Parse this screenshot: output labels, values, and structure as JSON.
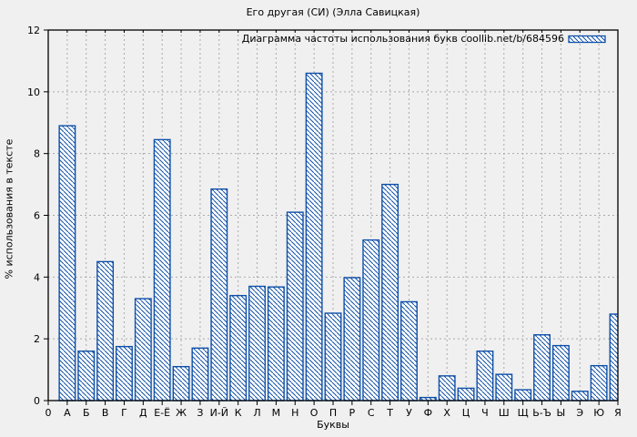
{
  "chart_data": {
    "type": "bar",
    "title": "Его другая (СИ) (Элла Савицкая)",
    "legend": "Диаграмма частоты использования букв coollib.net/b/684596",
    "legend_position": "top-right",
    "xlabel": "Буквы",
    "ylabel": "% использования в тексте",
    "origin_label": "0",
    "categories": [
      "А",
      "Б",
      "В",
      "Г",
      "Д",
      "Е-Ё",
      "Ж",
      "З",
      "И-Й",
      "К",
      "Л",
      "М",
      "Н",
      "О",
      "П",
      "Р",
      "С",
      "Т",
      "У",
      "Ф",
      "Х",
      "Ц",
      "Ч",
      "Ш",
      "Щ",
      "Ь-Ъ",
      "Ы",
      "Э",
      "Ю",
      "Я"
    ],
    "values": [
      8.9,
      1.6,
      4.5,
      1.75,
      3.3,
      8.45,
      1.1,
      1.7,
      6.85,
      3.4,
      3.7,
      3.68,
      6.1,
      10.6,
      2.83,
      3.98,
      5.2,
      7.0,
      3.2,
      0.1,
      0.8,
      0.4,
      1.6,
      0.85,
      0.35,
      2.13,
      1.78,
      0.3,
      1.13,
      2.8
    ],
    "ylim": [
      0,
      12
    ],
    "yticks": [
      0,
      2,
      4,
      6,
      8,
      10,
      12
    ],
    "grid": true,
    "grid_style": "dashed",
    "bar_color": "#0e4fa8",
    "bar_fill": "#ffffff",
    "hatch": "diagonal-backslash",
    "background": "#f0f0f0",
    "grid_color": "#aaaaaa",
    "border_color": "#000000"
  }
}
